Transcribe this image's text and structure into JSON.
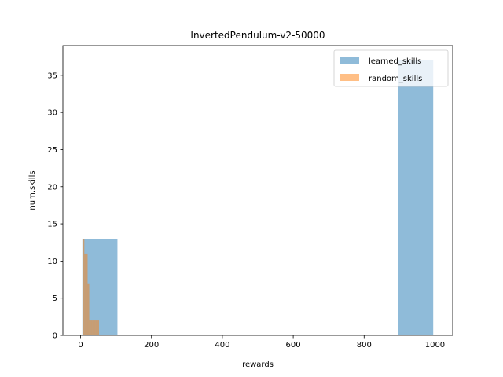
{
  "chart_data": {
    "type": "bar",
    "title": "InvertedPendulum-v2-50000",
    "xlabel": "rewards",
    "ylabel": "num.skills",
    "xlim": [
      -50,
      1050
    ],
    "ylim": [
      0,
      39
    ],
    "xticks": [
      0,
      200,
      400,
      600,
      800,
      1000
    ],
    "yticks": [
      0,
      5,
      10,
      15,
      20,
      25,
      30,
      35
    ],
    "legend_position": "top-right",
    "grid": false,
    "series": [
      {
        "name": "learned_skills",
        "color": "#1f77b4",
        "opacity": 0.5,
        "bins": [
          {
            "x0": 5,
            "x1": 104,
            "count": 13
          },
          {
            "x0": 104,
            "x1": 203,
            "count": 0
          },
          {
            "x0": 203,
            "x1": 302,
            "count": 0
          },
          {
            "x0": 302,
            "x1": 401,
            "count": 0
          },
          {
            "x0": 401,
            "x1": 500,
            "count": 0
          },
          {
            "x0": 500,
            "x1": 599,
            "count": 0
          },
          {
            "x0": 599,
            "x1": 698,
            "count": 0
          },
          {
            "x0": 698,
            "x1": 797,
            "count": 0
          },
          {
            "x0": 797,
            "x1": 896,
            "count": 0
          },
          {
            "x0": 896,
            "x1": 995,
            "count": 37
          }
        ]
      },
      {
        "name": "random_skills",
        "color": "#ff7f0e",
        "opacity": 0.5,
        "bins": [
          {
            "x0": 6,
            "x1": 10.6,
            "count": 13
          },
          {
            "x0": 10.6,
            "x1": 15.2,
            "count": 11
          },
          {
            "x0": 15.2,
            "x1": 19.8,
            "count": 11
          },
          {
            "x0": 19.8,
            "x1": 24.4,
            "count": 7
          },
          {
            "x0": 24.4,
            "x1": 29,
            "count": 2
          },
          {
            "x0": 29,
            "x1": 33.6,
            "count": 2
          },
          {
            "x0": 33.6,
            "x1": 38.2,
            "count": 2
          },
          {
            "x0": 38.2,
            "x1": 42.8,
            "count": 2
          },
          {
            "x0": 42.8,
            "x1": 47.4,
            "count": 2
          },
          {
            "x0": 47.4,
            "x1": 52,
            "count": 2
          }
        ]
      }
    ]
  }
}
